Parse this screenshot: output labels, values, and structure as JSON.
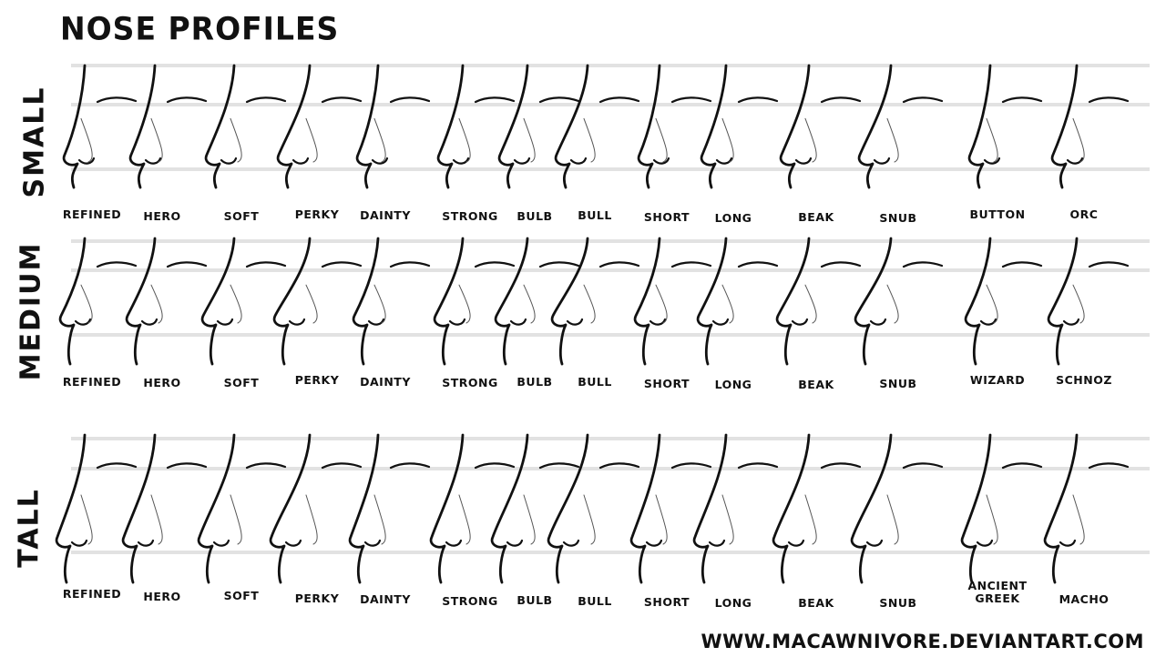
{
  "title": "NOSE PROFILES",
  "credit": "WWW.MACAWNIVORE.DEVIANTART.COM",
  "rows": [
    {
      "label": "SMALL",
      "noses": [
        "REFINED",
        "HERO",
        "SOFT",
        "PERKY",
        "DAINTY",
        "STRONG",
        "BULB",
        "BULL",
        "SHORT",
        "LONG",
        "BEAK",
        "SNUB",
        "BUTTON",
        "ORC"
      ]
    },
    {
      "label": "MEDIUM",
      "noses": [
        "REFINED",
        "HERO",
        "SOFT",
        "PERKY",
        "DAINTY",
        "STRONG",
        "BULB",
        "BULL",
        "SHORT",
        "LONG",
        "BEAK",
        "SNUB",
        "WIZARD",
        "SCHNOZ"
      ]
    },
    {
      "label": "TALL",
      "noses": [
        "REFINED",
        "HERO",
        "SOFT",
        "PERKY",
        "DAINTY",
        "STRONG",
        "BULB",
        "BULL",
        "SHORT",
        "LONG",
        "BEAK",
        "SNUB",
        "ANCIENT GREEK",
        "MACHO"
      ]
    }
  ]
}
